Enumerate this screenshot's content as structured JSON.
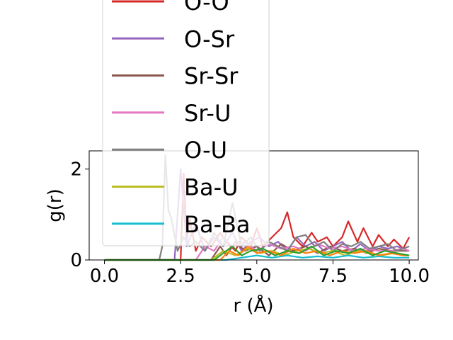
{
  "chart_data": {
    "type": "line",
    "title": "",
    "xlabel": "r (Å)",
    "ylabel": "g(r)",
    "xlim": [
      -0.5,
      10.3
    ],
    "ylim": [
      0,
      2.4
    ],
    "xticks": [
      "0.0",
      "2.5",
      "5.0",
      "7.5",
      "10.0"
    ],
    "xtick_values": [
      0,
      2.5,
      5,
      7.5,
      10
    ],
    "yticks": [
      "0",
      "2"
    ],
    "ytick_values": [
      0,
      2
    ],
    "grid": false,
    "legend_placement": "upper-left, overflowing above axes",
    "legend_entries_visible": [
      "O-O",
      "O-Sr",
      "Sr-Sr",
      "Sr-U",
      "O-U",
      "Ba-U",
      "Ba-Ba"
    ],
    "series": [
      {
        "name": "O-O",
        "color": "#d62728",
        "x": [
          0,
          1.0,
          2.5,
          2.6,
          2.7,
          2.8,
          3.0,
          3.2,
          3.5,
          3.8,
          4.0,
          4.3,
          4.5,
          4.8,
          5.0,
          5.2,
          5.5,
          5.8,
          6.0,
          6.2,
          6.5,
          6.8,
          7.0,
          7.3,
          7.5,
          7.8,
          8.0,
          8.3,
          8.5,
          8.8,
          9.0,
          9.3,
          9.5,
          9.8,
          10.0
        ],
        "y": [
          0,
          0,
          0,
          1.9,
          0.4,
          0.9,
          0.2,
          0.5,
          0.3,
          0.6,
          0.4,
          0.2,
          0.5,
          0.3,
          0.7,
          0.3,
          0.5,
          0.7,
          1.05,
          0.5,
          0.3,
          0.6,
          0.4,
          0.5,
          0.3,
          0.5,
          0.85,
          0.4,
          0.7,
          0.3,
          0.55,
          0.3,
          0.45,
          0.25,
          0.5
        ]
      },
      {
        "name": "O-Sr",
        "color": "#9467bd",
        "x": [
          0,
          2.0,
          2.3,
          2.5,
          2.7,
          3.0,
          3.3,
          3.6,
          3.9,
          4.2,
          4.5,
          4.8,
          5.1,
          5.4,
          5.7,
          6.0,
          6.3,
          6.6,
          6.9,
          7.2,
          7.5,
          7.8,
          8.1,
          8.4,
          8.7,
          9.0,
          9.3,
          9.6,
          10.0
        ],
        "y": [
          0,
          0,
          0,
          2.0,
          0.3,
          0.8,
          0.2,
          0.5,
          0.3,
          0.6,
          0.2,
          0.4,
          0.5,
          0.3,
          0.4,
          0.2,
          0.5,
          0.3,
          0.4,
          0.2,
          0.3,
          0.4,
          0.2,
          0.35,
          0.2,
          0.3,
          0.25,
          0.3,
          0.2
        ]
      },
      {
        "name": "Sr-Sr",
        "color": "#8c564b",
        "x": [
          0,
          3.5,
          3.8,
          4.0,
          4.3,
          4.6,
          5.0,
          5.4,
          5.8,
          6.2,
          6.6,
          7.0,
          7.4,
          7.8,
          8.2,
          8.6,
          9.0,
          9.4,
          9.8,
          10.0
        ],
        "y": [
          0,
          0,
          0.3,
          0.1,
          0.4,
          0.2,
          0.3,
          0.1,
          0.35,
          0.2,
          0.3,
          0.15,
          0.3,
          0.2,
          0.25,
          0.15,
          0.25,
          0.2,
          0.2,
          0.2
        ]
      },
      {
        "name": "Sr-U",
        "color": "#e377c2",
        "x": [
          0,
          3.0,
          3.3,
          3.6,
          3.9,
          4.2,
          4.6,
          5.0,
          5.4,
          5.8,
          6.2,
          6.6,
          7.0,
          7.4,
          7.8,
          8.2,
          8.6,
          9.0,
          9.4,
          9.8,
          10.0
        ],
        "y": [
          0,
          0,
          0.3,
          0.2,
          0.5,
          0.3,
          0.4,
          0.2,
          0.35,
          0.25,
          0.3,
          0.2,
          0.35,
          0.25,
          0.3,
          0.2,
          0.25,
          0.2,
          0.2,
          0.25,
          0.2
        ]
      },
      {
        "name": "O-U",
        "color": "#7f7f7f",
        "x": [
          0,
          1.8,
          1.9,
          2.0,
          2.1,
          2.2,
          2.4,
          2.6,
          2.8,
          3.0,
          3.3,
          3.6,
          3.9,
          4.2,
          4.5,
          4.8,
          5.1,
          5.4,
          5.7,
          6.0,
          6.3,
          6.6,
          6.9,
          7.2,
          7.5,
          7.8,
          8.1,
          8.4,
          8.7,
          9.0,
          9.3,
          9.6,
          10.0
        ],
        "y": [
          0,
          0,
          0.3,
          2.3,
          1.1,
          0.9,
          0.2,
          0.5,
          0.3,
          0.4,
          0.2,
          0.6,
          0.3,
          1.25,
          0.3,
          0.5,
          0.2,
          0.4,
          0.3,
          0.2,
          0.5,
          0.55,
          0.3,
          0.4,
          0.2,
          0.35,
          0.3,
          0.4,
          0.25,
          0.3,
          0.35,
          0.2,
          0.3
        ]
      },
      {
        "name": "Ba-U",
        "color": "#bcbd22",
        "x": [
          0,
          3.5,
          3.9,
          4.3,
          4.7,
          5.1,
          5.5,
          5.9,
          6.3,
          6.7,
          7.1,
          7.5,
          7.9,
          8.3,
          8.7,
          9.1,
          9.5,
          10.0
        ],
        "y": [
          0,
          0,
          0.2,
          0.1,
          0.25,
          0.15,
          0.2,
          0.1,
          0.2,
          0.25,
          0.15,
          0.2,
          0.1,
          0.2,
          0.15,
          0.1,
          0.15,
          0.1
        ]
      },
      {
        "name": "Ba-Ba",
        "color": "#17becf",
        "x": [
          0,
          4.0,
          4.5,
          5.0,
          5.5,
          6.0,
          6.5,
          7.0,
          7.5,
          8.0,
          8.5,
          9.0,
          9.5,
          10.0
        ],
        "y": [
          0,
          0,
          0.05,
          0.1,
          0.05,
          0.1,
          0.05,
          0.08,
          0.05,
          0.1,
          0.05,
          0.08,
          0.05,
          0.05
        ]
      },
      {
        "color": "#ff7f0e",
        "x": [
          0,
          3.8,
          4.1,
          4.4,
          4.7,
          5.0,
          5.4,
          5.8,
          6.2,
          6.6,
          7.0,
          7.4,
          7.8,
          8.2,
          8.6,
          9.0,
          9.4,
          9.8,
          10.0
        ],
        "y": [
          0,
          0,
          0.2,
          0.1,
          0.3,
          0.15,
          0.2,
          0.1,
          0.25,
          0.15,
          0.2,
          0.1,
          0.2,
          0.15,
          0.2,
          0.1,
          0.15,
          0.1,
          0.1
        ]
      },
      {
        "color": "#2ca02c",
        "x": [
          0,
          3.6,
          3.9,
          4.2,
          4.5,
          4.8,
          5.2,
          5.6,
          6.0,
          6.4,
          6.8,
          7.2,
          7.6,
          8.0,
          8.4,
          8.8,
          9.2,
          9.6,
          10.0
        ],
        "y": [
          0,
          0,
          0.15,
          0.3,
          0.1,
          0.2,
          0.25,
          0.1,
          0.2,
          0.15,
          0.3,
          0.1,
          0.2,
          0.15,
          0.25,
          0.1,
          0.2,
          0.15,
          0.1
        ]
      }
    ]
  }
}
